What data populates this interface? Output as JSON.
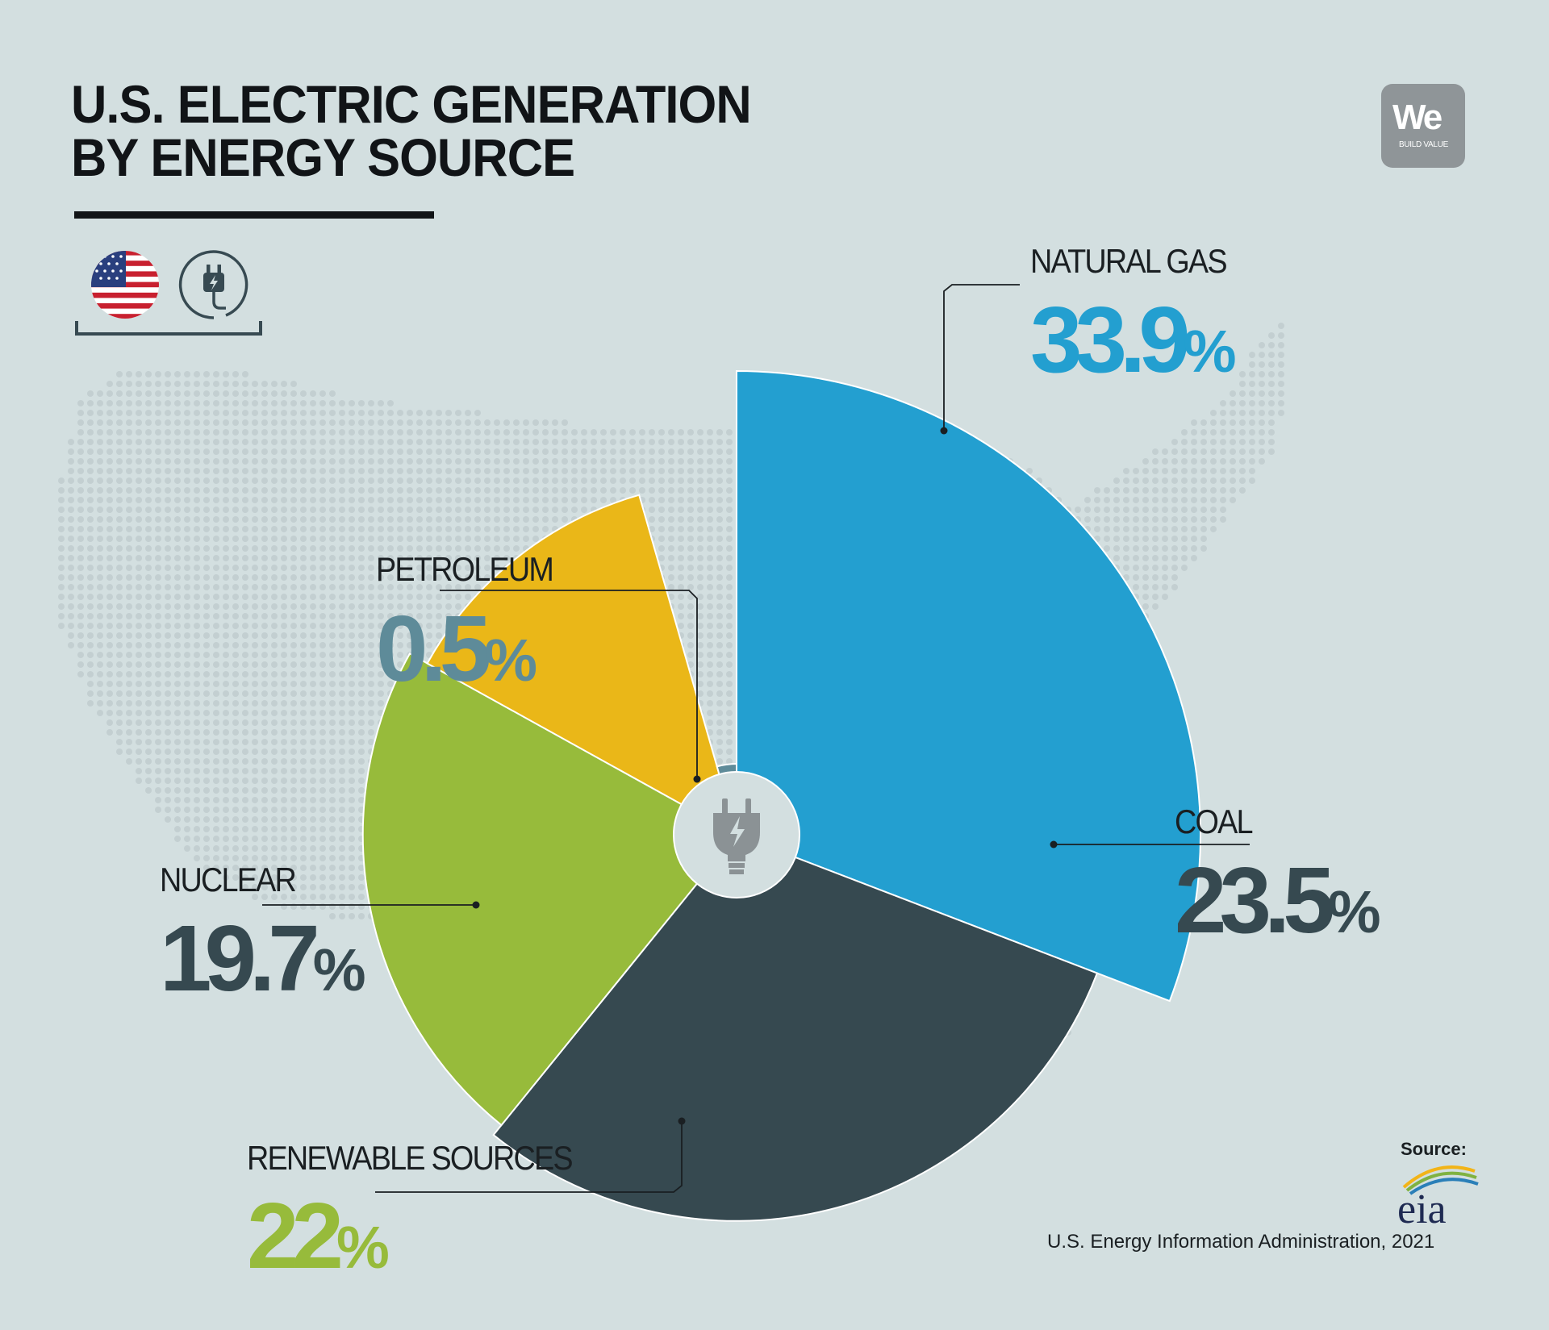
{
  "title": {
    "line1": "U.S. ELECTRIC GENERATION",
    "line2": "BY ENERGY SOURCE"
  },
  "logo": {
    "main": "We",
    "sub": "BUILD VALUE"
  },
  "icons": {
    "flag": "us-flag-icon",
    "plug": "plug-icon",
    "center": "electric-plug-icon"
  },
  "chart_data": {
    "type": "pie",
    "variant": "polar-area",
    "categories": [
      "Natural Gas",
      "Coal",
      "Renewable Sources",
      "Nuclear",
      "Petroleum"
    ],
    "slices": [
      {
        "label": "NATURAL GAS",
        "value": 33.9,
        "value_text": "33.9",
        "color": "#239fd0"
      },
      {
        "label": "COAL",
        "value": 23.5,
        "value_text": "23.5",
        "color": "#364950"
      },
      {
        "label": "RENEWABLE SOURCES",
        "value": 22,
        "value_text": "22",
        "color": "#97bb3b"
      },
      {
        "label": "NUCLEAR",
        "value": 19.7,
        "value_text": "19.7",
        "color": "#eab718"
      },
      {
        "label": "PETROLEUM",
        "value": 0.5,
        "value_text": "0.5",
        "color": "#5e8b99"
      }
    ],
    "value_colors": [
      "#239fd0",
      "#364950",
      "#97bb3b",
      "#364950",
      "#5e8b99"
    ],
    "unit": "%"
  },
  "source": {
    "heading": "Source:",
    "logo_text": "eia",
    "text": "U.S. Energy Information Administration, 2021"
  }
}
